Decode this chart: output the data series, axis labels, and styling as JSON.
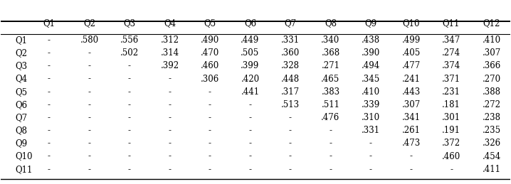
{
  "col_headers": [
    "",
    "Q1",
    "Q2",
    "Q3",
    "Q4",
    "Q5",
    "Q6",
    "Q7",
    "Q8",
    "Q9",
    "Q10",
    "Q11",
    "Q12"
  ],
  "rows": [
    [
      "Q1",
      "-",
      ".580",
      ".556",
      ".312",
      ".490",
      ".449",
      ".331",
      ".340",
      ".438",
      ".499",
      ".347",
      ".410"
    ],
    [
      "Q2",
      "-",
      "-",
      ".502",
      ".314",
      ".470",
      ".505",
      ".360",
      ".368",
      ".390",
      ".405",
      ".274",
      ".307"
    ],
    [
      "Q3",
      "-",
      "-",
      "-",
      ".392",
      ".460",
      ".399",
      ".328",
      ".271",
      ".494",
      ".477",
      ".374",
      ".366"
    ],
    [
      "Q4",
      "-",
      "-",
      "-",
      "-",
      ".306",
      ".420",
      ".448",
      ".465",
      ".345",
      ".241",
      ".371",
      ".270"
    ],
    [
      "Q5",
      "-",
      "-",
      "-",
      "-",
      "-",
      ".441",
      ".317",
      ".383",
      ".410",
      ".443",
      ".231",
      ".388"
    ],
    [
      "Q6",
      "-",
      "-",
      "-",
      "-",
      "-",
      "-",
      ".513",
      ".511",
      ".339",
      ".307",
      ".181",
      ".272"
    ],
    [
      "Q7",
      "-",
      "-",
      "-",
      "-",
      "-",
      "-",
      "-",
      ".476",
      ".310",
      ".341",
      ".301",
      ".238"
    ],
    [
      "Q8",
      "-",
      "-",
      "-",
      "-",
      "-",
      "-",
      "-",
      "-",
      ".331",
      ".261",
      ".191",
      ".235"
    ],
    [
      "Q9",
      "-",
      "-",
      "-",
      "-",
      "-",
      "-",
      "-",
      "-",
      "-",
      ".473",
      ".372",
      ".326"
    ],
    [
      "Q10",
      "-",
      "-",
      "-",
      "-",
      "-",
      "-",
      "-",
      "-",
      "-",
      "-",
      ".460",
      ".454"
    ],
    [
      "Q11",
      "-",
      "-",
      "-",
      "-",
      "-",
      "-",
      "-",
      "-",
      "-",
      "-",
      "-",
      ".411"
    ]
  ],
  "background_color": "#ffffff",
  "header_line_color": "#000000",
  "text_color": "#000000",
  "font_size": 8.5,
  "header_font_size": 8.5
}
